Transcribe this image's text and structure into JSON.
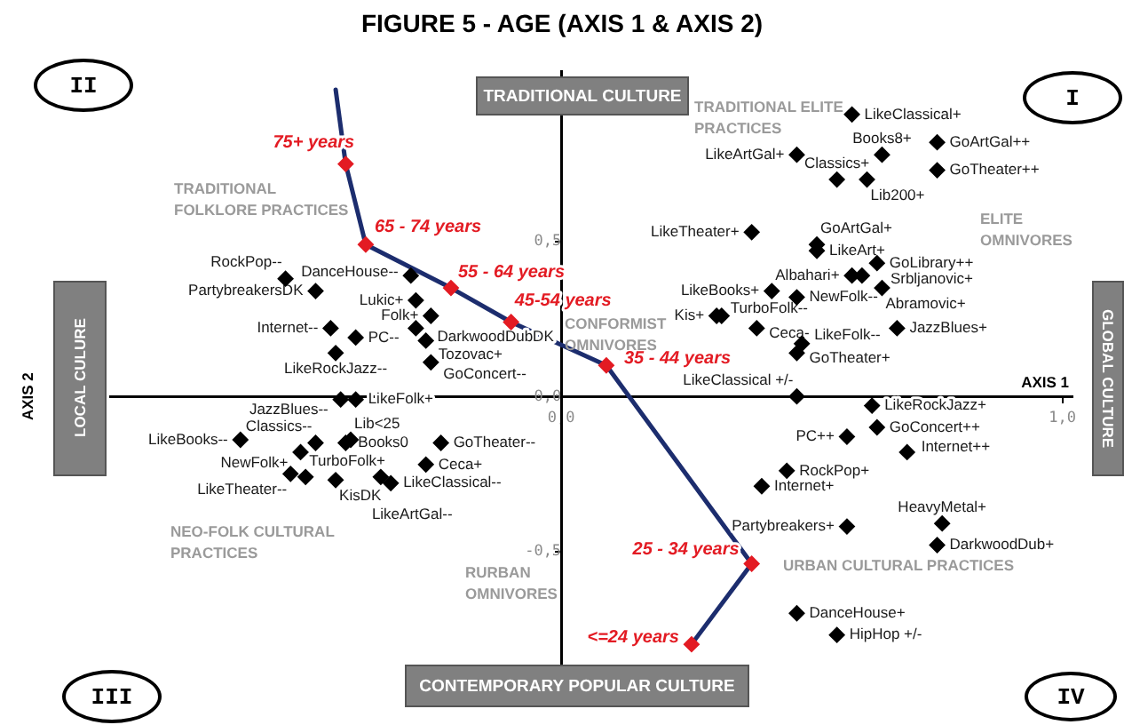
{
  "chart_data": {
    "type": "scatter",
    "title": "FIGURE 5 - AGE (AXIS 1 & AXIS 2)",
    "xlabel": "AXIS 1",
    "ylabel": "AXIS 2",
    "xlim": [
      -0.9,
      1.02
    ],
    "ylim": [
      -0.9,
      1.05
    ],
    "xticks": [
      {
        "value": 0,
        "label": "0,0"
      },
      {
        "value": 1,
        "label": "1,0"
      }
    ],
    "yticks": [
      {
        "value": -0.5,
        "label": "-0,5"
      },
      {
        "value": 0,
        "label": "0,0"
      },
      {
        "value": 0.5,
        "label": "0,5"
      }
    ],
    "grid": false,
    "legend": false,
    "series": [
      {
        "type": "line",
        "color": "#1c2d6e",
        "marker": "none",
        "x": [
          -0.45,
          -0.43,
          -0.39,
          -0.22,
          -0.1,
          0.09,
          0.38,
          0.26
        ],
        "values": [
          0.99,
          0.75,
          0.49,
          0.35,
          0.24,
          0.1,
          -0.54,
          -0.8
        ]
      },
      {
        "type": "scatter",
        "color": "#e31b23",
        "marker": "diamond",
        "x": [
          -0.43,
          -0.39,
          -0.22,
          -0.1,
          0.09,
          0.38,
          0.26
        ],
        "values": [
          0.75,
          0.49,
          0.35,
          0.24,
          0.1,
          -0.54,
          -0.8
        ],
        "value_labels": [
          "75+ years",
          "65 - 74 years",
          "55 - 64 years",
          "45-54 years",
          "35 - 44 years",
          "25 - 34 years",
          "<=24 years"
        ]
      },
      {
        "type": "scatter",
        "color": "#000000",
        "marker": "diamond",
        "x": [
          -0.55,
          -0.49,
          -0.3,
          -0.29,
          -0.26,
          -0.29,
          -0.27,
          -0.26,
          -0.41,
          -0.46,
          -0.45,
          -0.44,
          -0.41,
          -0.42,
          -0.64,
          -0.52,
          -0.49,
          -0.43,
          -0.51,
          -0.54,
          -0.45,
          -0.36,
          -0.34,
          -0.24,
          -0.27,
          0.58,
          0.64,
          0.75,
          0.75,
          0.47,
          0.55,
          0.61,
          0.38,
          0.51,
          0.51,
          0.63,
          0.58,
          0.6,
          0.64,
          0.42,
          0.47,
          0.31,
          0.32,
          0.39,
          0.48,
          0.47,
          0.67,
          0.47,
          0.62,
          0.63,
          0.57,
          0.69,
          0.45,
          0.4,
          0.57,
          0.76,
          0.75,
          0.47,
          0.55
        ],
        "values": [
          0.38,
          0.34,
          0.39,
          0.31,
          0.26,
          0.22,
          0.18,
          0.11,
          0.19,
          0.22,
          0.14,
          -0.01,
          -0.01,
          -0.14,
          -0.14,
          -0.18,
          -0.15,
          -0.15,
          -0.26,
          -0.25,
          -0.27,
          -0.26,
          -0.28,
          -0.15,
          -0.22,
          0.91,
          0.78,
          0.82,
          0.73,
          0.78,
          0.7,
          0.7,
          0.53,
          0.49,
          0.47,
          0.43,
          0.39,
          0.39,
          0.35,
          0.34,
          0.32,
          0.26,
          0.26,
          0.22,
          0.17,
          0.14,
          0.22,
          0,
          -0.03,
          -0.1,
          -0.13,
          -0.18,
          -0.24,
          -0.29,
          -0.42,
          -0.41,
          -0.48,
          -0.7,
          -0.77
        ],
        "value_labels": [
          "RockPop--",
          "PartybreakersDK",
          "DanceHouse--",
          "Lukic+",
          "Folk+",
          "DarkwoodDubDK",
          "Tozovac+",
          "GoConcert--",
          "PC--",
          "Internet--",
          "LikeRockJazz--",
          "JazzBlues--",
          "LikeFolk+",
          "Lib<25",
          "LikeBooks--",
          "NewFolk+",
          "Classics--",
          "Books0",
          "TurboFolk+",
          "LikeTheater--",
          "KisDK",
          "LikeArtGal--",
          "LikeClassical--",
          "GoTheater--",
          "Ceca+",
          "LikeClassical+",
          "Books8+",
          "GoArtGal++",
          "GoTheater++",
          "LikeArtGal+",
          "Classics+",
          "Lib200+",
          "LikeTheater+",
          "GoArtGal+",
          "LikeArt+",
          "GoLibrary++",
          "Albahari+",
          "Srbljanovic+",
          "Abramovic+",
          "LikeBooks+",
          "NewFolk--",
          "Kis+",
          "TurboFolk--",
          "Ceca-",
          "LikeFolk--",
          "GoTheater+",
          "JazzBlues+",
          "LikeClassical +/-",
          "LikeRockJazz+",
          "GoConcert++",
          "PC++",
          "Internet++",
          "RockPop+",
          "Internet+",
          "Partybreakers+",
          "HeavyMetal+",
          "DarkwoodDub+",
          "DanceHouse+",
          "HipHop +/-"
        ]
      }
    ],
    "annotations": [
      "I",
      "II",
      "III",
      "IV",
      "TRADITIONAL CULTURE",
      "CONTEMPORARY POPULAR CULTURE",
      "LOCAL CULURE",
      "GLOBAL CULTURE",
      "TRADITIONAL ELITE PRACTICES",
      "ELITE OMNIVORES",
      "TRADITIONAL FOLKLORE PRACTICES",
      "CONFORMIST OMNIVORES",
      "NEO-FOLK CULTURAL PRACTICES",
      "RURBAN OMNIVORES",
      "URBAN CULTURAL PRACTICES"
    ]
  }
}
